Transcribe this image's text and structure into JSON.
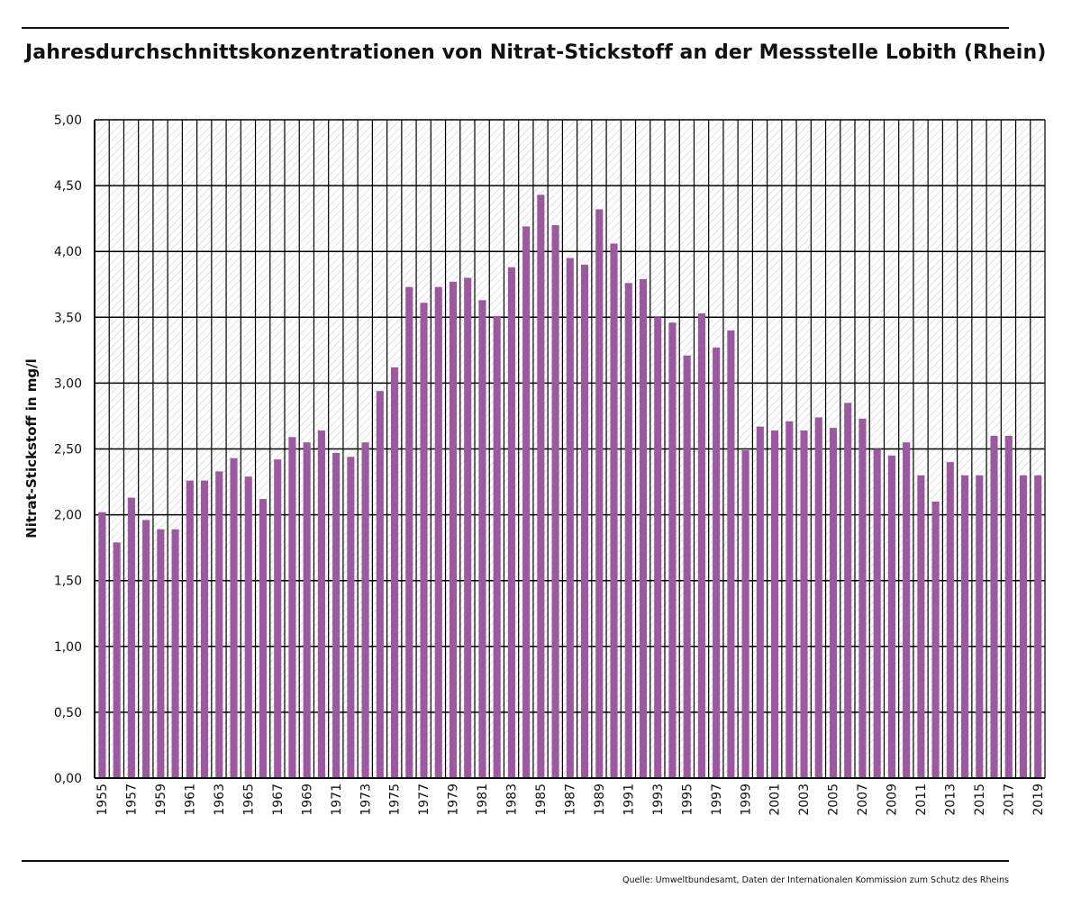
{
  "title": "Jahresdurchschnittskonzentrationen von Nitrat-Stickstoff an der Messstelle Lobith (Rhein)",
  "source": "Quelle: Umweltbundesamt, Daten der Internationalen Kommission zum Schutz des Rheins",
  "colors": {
    "bar": "#9b5a9f",
    "grid": "#000000",
    "hatch": "#c8c8c8"
  },
  "chart_data": {
    "type": "bar",
    "title": "Jahresdurchschnittskonzentrationen von Nitrat-Stickstoff an der Messstelle Lobith (Rhein)",
    "xlabel": "",
    "ylabel": "Nitrat-Stickstoff in mg/l",
    "ylim": [
      0,
      5
    ],
    "y_ticks": [
      "0,00",
      "0,50",
      "1,00",
      "1,50",
      "2,00",
      "2,50",
      "3,00",
      "3,50",
      "4,00",
      "4,50",
      "5,00"
    ],
    "x_tick_labels": [
      "1955",
      "1957",
      "1959",
      "1961",
      "1963",
      "1965",
      "1967",
      "1969",
      "1971",
      "1973",
      "1975",
      "1977",
      "1979",
      "1981",
      "1983",
      "1985",
      "1987",
      "1989",
      "1991",
      "1993",
      "1995",
      "1997",
      "1999",
      "2001",
      "2003",
      "2005",
      "2007",
      "2009",
      "2011",
      "2013",
      "2015",
      "2017",
      "2019"
    ],
    "grid": true,
    "categories": [
      "1955",
      "1956",
      "1957",
      "1958",
      "1959",
      "1960",
      "1961",
      "1962",
      "1963",
      "1964",
      "1965",
      "1966",
      "1967",
      "1968",
      "1969",
      "1970",
      "1971",
      "1972",
      "1973",
      "1974",
      "1975",
      "1976",
      "1977",
      "1978",
      "1979",
      "1980",
      "1981",
      "1982",
      "1983",
      "1984",
      "1985",
      "1986",
      "1987",
      "1988",
      "1989",
      "1990",
      "1991",
      "1992",
      "1993",
      "1994",
      "1995",
      "1996",
      "1997",
      "1998",
      "1999",
      "2000",
      "2001",
      "2002",
      "2003",
      "2004",
      "2005",
      "2006",
      "2007",
      "2008",
      "2009",
      "2010",
      "2011",
      "2012",
      "2013",
      "2014",
      "2015",
      "2016",
      "2017",
      "2018",
      "2019"
    ],
    "values": [
      2.02,
      1.79,
      2.13,
      1.96,
      1.89,
      1.89,
      2.26,
      2.26,
      2.33,
      2.43,
      2.29,
      2.12,
      2.42,
      2.59,
      2.55,
      2.64,
      2.47,
      2.44,
      2.55,
      2.94,
      3.12,
      3.73,
      3.61,
      3.73,
      3.77,
      3.8,
      3.63,
      3.51,
      3.88,
      4.19,
      4.43,
      4.2,
      3.95,
      3.9,
      4.32,
      4.06,
      3.76,
      3.79,
      3.5,
      3.46,
      3.21,
      3.53,
      3.27,
      3.4,
      2.49,
      2.67,
      2.64,
      2.71,
      2.64,
      2.74,
      2.66,
      2.85,
      2.73,
      2.5,
      2.45,
      2.55,
      2.3,
      2.1,
      2.4,
      2.3,
      2.3,
      2.6,
      2.6,
      2.3,
      2.3
    ]
  }
}
